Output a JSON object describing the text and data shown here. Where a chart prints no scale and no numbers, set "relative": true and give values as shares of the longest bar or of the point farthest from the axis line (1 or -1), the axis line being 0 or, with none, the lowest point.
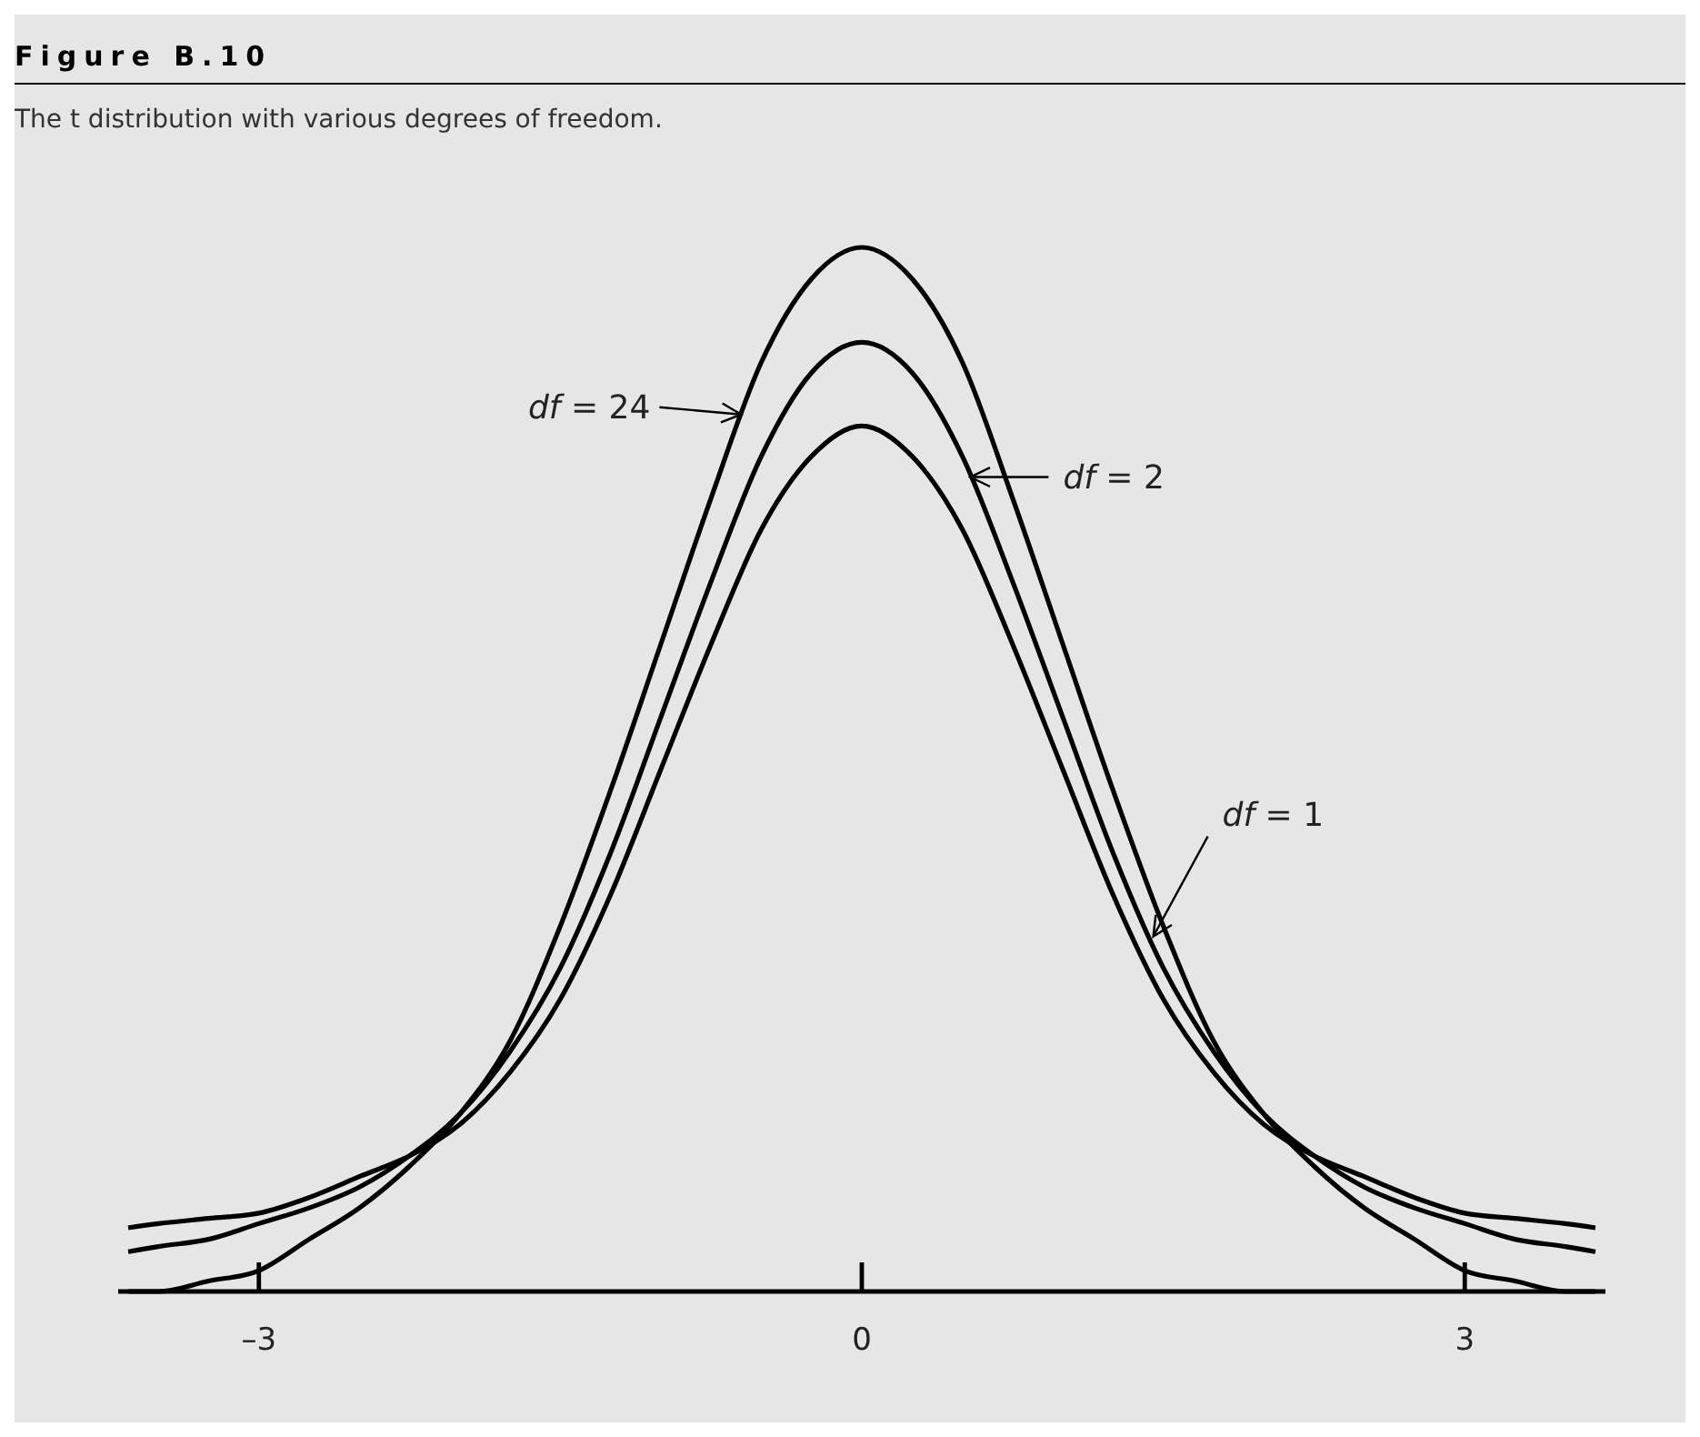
{
  "chart_data": {
    "type": "line",
    "title": "Figure B.10",
    "subtitle": "The t distribution with various degrees of freedom.",
    "relative": true,
    "marker": "none",
    "line_style": "solid",
    "x": [
      -3.65,
      -3.5,
      -3.25,
      -3,
      -2.75,
      -2.5,
      -2.25,
      -2,
      -1.75,
      -1.5,
      -1.25,
      -1,
      -0.75,
      -0.5,
      -0.25,
      0,
      0.25,
      0.5,
      0.75,
      1,
      1.25,
      1.5,
      1.75,
      2,
      2.25,
      2.5,
      2.75,
      3,
      3.25,
      3.5,
      3.65
    ],
    "xlim": [
      -3.7,
      3.7
    ],
    "xticks": [
      {
        "value": -3,
        "label": "–3"
      },
      0,
      3
    ],
    "series": [
      {
        "color": "#000000",
        "values": [
          0,
          0,
          0.01,
          0.02,
          0.05,
          0.08,
          0.12,
          0.17,
          0.24,
          0.35,
          0.48,
          0.62,
          0.76,
          0.89,
          0.97,
          1,
          0.97,
          0.89,
          0.76,
          0.62,
          0.48,
          0.35,
          0.24,
          0.17,
          0.12,
          0.08,
          0.05,
          0.02,
          0.01,
          0,
          0
        ]
      },
      {
        "color": "#000000",
        "values": [
          0.038,
          0.043,
          0.05,
          0.065,
          0.08,
          0.1,
          0.13,
          0.17,
          0.23,
          0.31,
          0.42,
          0.55,
          0.68,
          0.8,
          0.88,
          0.909,
          0.88,
          0.8,
          0.68,
          0.55,
          0.42,
          0.31,
          0.23,
          0.17,
          0.13,
          0.1,
          0.08,
          0.065,
          0.05,
          0.043,
          0.038
        ]
      },
      {
        "color": "#000000",
        "values": [
          0.061,
          0.065,
          0.07,
          0.075,
          0.09,
          0.11,
          0.13,
          0.16,
          0.21,
          0.28,
          0.38,
          0.5,
          0.62,
          0.73,
          0.8,
          0.829,
          0.8,
          0.73,
          0.62,
          0.5,
          0.38,
          0.28,
          0.21,
          0.16,
          0.13,
          0.11,
          0.09,
          0.075,
          0.07,
          0.065,
          0.061
        ]
      }
    ],
    "annotations": [
      {
        "text": "df = 24",
        "x": -0.6,
        "y": 0.84
      },
      {
        "text": "df = 2",
        "x": 0.54,
        "y": 0.78
      },
      {
        "text": "df = 1",
        "x": 1.45,
        "y": 0.34
      }
    ]
  }
}
